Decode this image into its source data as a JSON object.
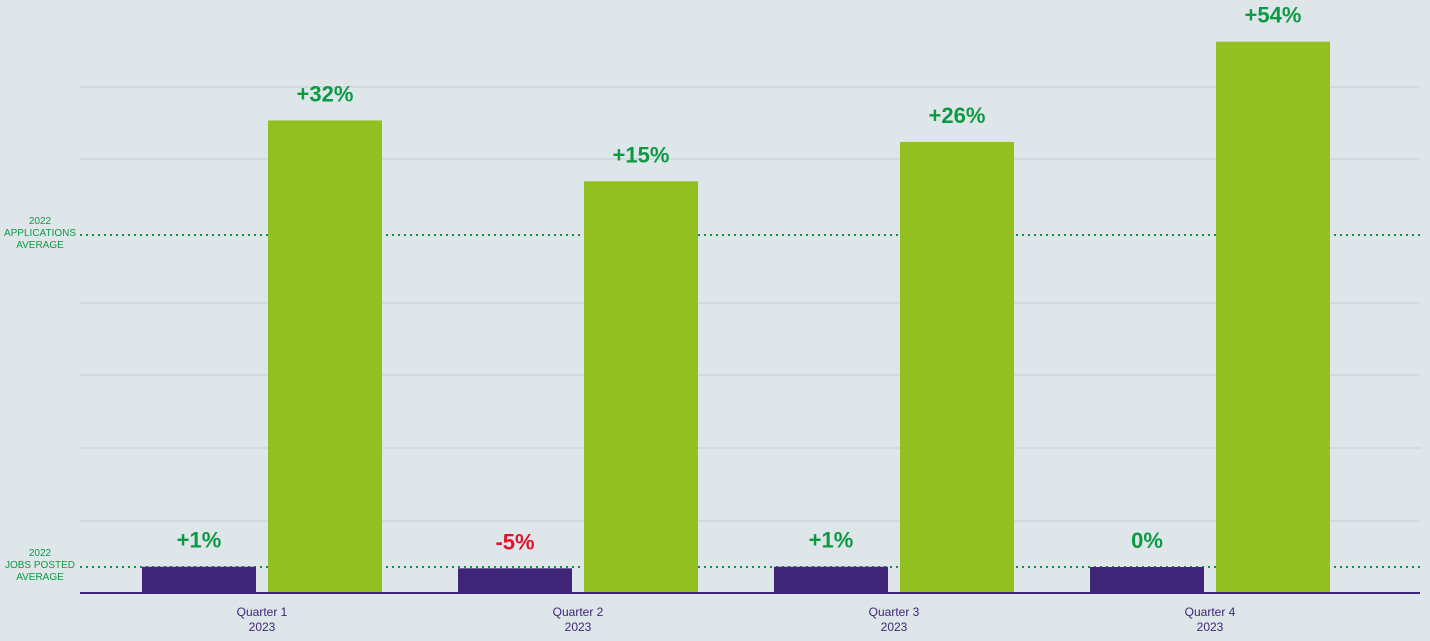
{
  "colors": {
    "background": "#dfe6ea",
    "jobs_posted": "#3f2577",
    "applications": "#91c020",
    "positive": "#0b9a44",
    "negative": "#e3112b",
    "grid": "#c5cdd3",
    "axis": "#3f2577",
    "reference_line": "#0b9a44"
  },
  "chart_data": {
    "type": "bar",
    "title": "",
    "xlabel": "",
    "ylabel": "",
    "grid": true,
    "legend": "none",
    "categories": [
      [
        "Quarter 1",
        "2023"
      ],
      [
        "Quarter 2",
        "2023"
      ],
      [
        "Quarter 3",
        "2023"
      ],
      [
        "Quarter 4",
        "2023"
      ]
    ],
    "series": [
      {
        "key": "jobs_posted",
        "change_labels": [
          "+1%",
          "-5%",
          "+1%",
          "0%"
        ],
        "change_percent": [
          1,
          -5,
          1,
          0
        ],
        "relative_to_average": [
          1.01,
          0.95,
          1.01,
          1.0
        ]
      },
      {
        "key": "applications",
        "change_labels": [
          "+32%",
          "+15%",
          "+26%",
          "+54%"
        ],
        "change_percent": [
          32,
          15,
          26,
          54
        ],
        "relative_to_average": [
          1.32,
          1.15,
          1.26,
          1.54
        ]
      }
    ],
    "reference_lines": [
      {
        "key": "applications_average",
        "label": [
          "2022",
          "APPLICATIONS",
          "AVERAGE"
        ]
      },
      {
        "key": "jobs_posted_average",
        "label": [
          "2022",
          "JOBS POSTED",
          "AVERAGE"
        ]
      }
    ]
  }
}
